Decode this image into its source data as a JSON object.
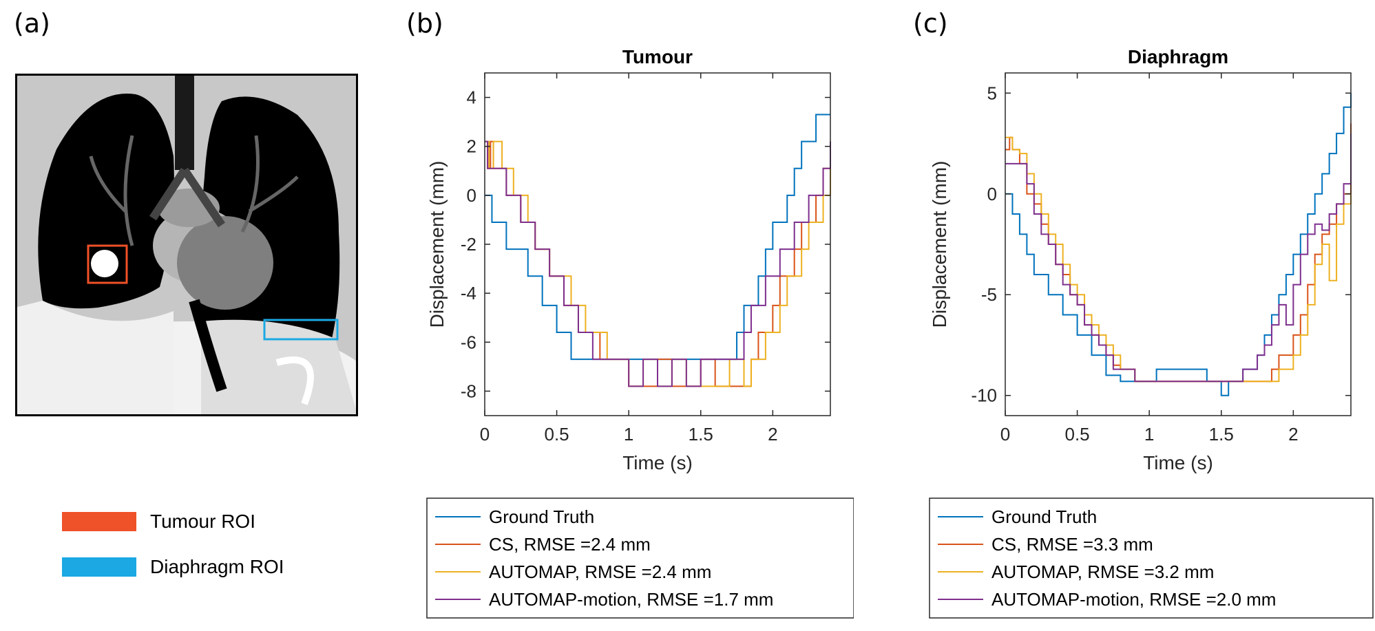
{
  "panels": {
    "a": {
      "letter": "(a)"
    },
    "b": {
      "letter": "(b)"
    },
    "c": {
      "letter": "(c)"
    }
  },
  "roi_legend": [
    {
      "label": "Tumour ROI",
      "color": "#EF5128"
    },
    {
      "label": "Diaphragm ROI",
      "color": "#1BA8E3"
    }
  ],
  "colors": {
    "ground_truth": "#0072BD",
    "cs": "#D95319",
    "automap": "#EDB120",
    "automap_motion": "#7E2F8E"
  },
  "chart_data": [
    {
      "type": "line",
      "title": "Tumour",
      "xlabel": "Time (s)",
      "ylabel": "Displacement (mm)",
      "xlim": [
        0,
        2.4
      ],
      "ylim": [
        -9,
        5
      ],
      "xticks": [
        0,
        0.5,
        1,
        1.5,
        2
      ],
      "xtick_labels": [
        "0",
        "0.5",
        "1",
        "1.5",
        "2"
      ],
      "yticks": [
        4,
        2,
        0,
        -2,
        -4,
        -6,
        -8
      ],
      "ytick_labels": [
        "4",
        "2",
        "0",
        "-2",
        "-4",
        "-6",
        "-8"
      ],
      "grid": false,
      "legend_position": "below",
      "series": [
        {
          "name": "Ground Truth",
          "color": "#0072BD",
          "x": [
            0,
            0.05,
            0.1,
            0.15,
            0.2,
            0.3,
            0.4,
            0.5,
            0.6,
            0.65,
            1.0,
            1.2,
            1.4,
            1.6,
            1.7,
            1.75,
            1.8,
            1.85,
            1.9,
            1.95,
            2.0,
            2.05,
            2.1,
            2.15,
            2.2,
            2.25,
            2.3,
            2.4
          ],
          "y": [
            0,
            -1.1,
            -1.1,
            -2.2,
            -2.2,
            -3.3,
            -4.5,
            -5.6,
            -6.7,
            -6.7,
            -6.7,
            -6.7,
            -6.7,
            -6.7,
            -6.7,
            -5.6,
            -4.5,
            -4.5,
            -3.3,
            -2.2,
            -1.1,
            -1.1,
            0,
            1.1,
            2.2,
            2.2,
            3.3,
            3.3
          ]
        },
        {
          "name": "CS, RMSE =2.4 mm",
          "color": "#D95319",
          "x": [
            0,
            0.02,
            0.04,
            0.06,
            0.1,
            0.15,
            0.2,
            0.25,
            0.3,
            0.35,
            0.4,
            0.45,
            0.5,
            0.55,
            0.6,
            0.65,
            0.7,
            0.75,
            0.8,
            0.85,
            0.9,
            1.0,
            1.1,
            1.2,
            1.3,
            1.4,
            1.5,
            1.6,
            1.7,
            1.8,
            1.85,
            1.9,
            1.95,
            2.0,
            2.05,
            2.1,
            2.15,
            2.2,
            2.25,
            2.3,
            2.35,
            2.4
          ],
          "y": [
            2.2,
            1.1,
            2.2,
            1.1,
            1.1,
            0,
            0,
            -1.1,
            -1.1,
            -2.2,
            -2.2,
            -3.3,
            -3.3,
            -4.5,
            -4.5,
            -5.6,
            -5.6,
            -5.6,
            -6.7,
            -6.7,
            -6.7,
            -7.8,
            -7.8,
            -6.7,
            -7.8,
            -7.8,
            -6.7,
            -7.8,
            -7.8,
            -7.8,
            -6.7,
            -5.6,
            -5.6,
            -4.5,
            -3.3,
            -3.3,
            -2.2,
            -1.1,
            -1.1,
            0,
            1.1,
            2.2
          ]
        },
        {
          "name": "AUTOMAP, RMSE =2.4 mm",
          "color": "#EDB120",
          "x": [
            0,
            0.03,
            0.06,
            0.1,
            0.12,
            0.15,
            0.2,
            0.25,
            0.3,
            0.35,
            0.4,
            0.45,
            0.5,
            0.55,
            0.6,
            0.65,
            0.7,
            0.75,
            0.8,
            0.85,
            0.9,
            1.0,
            1.1,
            1.2,
            1.3,
            1.4,
            1.5,
            1.6,
            1.7,
            1.8,
            1.85,
            1.9,
            1.95,
            2.0,
            2.05,
            2.1,
            2.15,
            2.2,
            2.25,
            2.3,
            2.35,
            2.4
          ],
          "y": [
            2.2,
            1.1,
            2.2,
            2.2,
            1.1,
            1.1,
            0,
            0,
            -1.1,
            -2.2,
            -2.2,
            -3.3,
            -3.3,
            -3.3,
            -4.5,
            -4.5,
            -5.6,
            -5.6,
            -5.6,
            -6.7,
            -6.7,
            -7.8,
            -6.7,
            -7.8,
            -6.7,
            -7.8,
            -7.8,
            -7.8,
            -6.7,
            -7.8,
            -6.7,
            -6.7,
            -5.6,
            -5.6,
            -4.5,
            -3.3,
            -3.3,
            -2.2,
            -1.1,
            -1.1,
            0,
            1.1
          ]
        },
        {
          "name": "AUTOMAP-motion, RMSE =1.7 mm",
          "color": "#7E2F8E",
          "x": [
            0,
            0.02,
            0.05,
            0.1,
            0.15,
            0.2,
            0.25,
            0.3,
            0.35,
            0.4,
            0.45,
            0.5,
            0.55,
            0.6,
            0.65,
            0.7,
            0.75,
            0.8,
            0.85,
            0.9,
            1.0,
            1.1,
            1.2,
            1.3,
            1.4,
            1.5,
            1.6,
            1.7,
            1.75,
            1.8,
            1.85,
            1.9,
            1.95,
            2.0,
            2.05,
            2.1,
            2.15,
            2.2,
            2.25,
            2.3,
            2.35,
            2.4
          ],
          "y": [
            2.2,
            1.1,
            1.1,
            1.1,
            0,
            0,
            -1.1,
            -1.1,
            -2.2,
            -2.2,
            -3.3,
            -3.3,
            -4.5,
            -4.5,
            -5.6,
            -5.6,
            -6.7,
            -6.7,
            -6.7,
            -6.7,
            -7.8,
            -6.7,
            -7.8,
            -6.7,
            -7.8,
            -6.7,
            -6.7,
            -6.7,
            -6.7,
            -5.6,
            -4.5,
            -4.5,
            -3.3,
            -3.3,
            -2.2,
            -2.2,
            -1.1,
            -1.1,
            0,
            0,
            1.1,
            2.2
          ]
        }
      ]
    },
    {
      "type": "line",
      "title": "Diaphragm",
      "xlabel": "Time (s)",
      "ylabel": "Displacement (mm)",
      "xlim": [
        0,
        2.4
      ],
      "ylim": [
        -11,
        6
      ],
      "xticks": [
        0,
        0.5,
        1,
        1.5,
        2
      ],
      "xtick_labels": [
        "0",
        "0.5",
        "1",
        "1.5",
        "2"
      ],
      "yticks": [
        5,
        0,
        -5,
        -10
      ],
      "ytick_labels": [
        "5",
        "0",
        "-5",
        "-10"
      ],
      "grid": false,
      "legend_position": "below",
      "series": [
        {
          "name": "Ground Truth",
          "color": "#0072BD",
          "x": [
            0,
            0.05,
            0.1,
            0.15,
            0.2,
            0.3,
            0.4,
            0.5,
            0.6,
            0.7,
            0.8,
            1.0,
            1.05,
            1.2,
            1.35,
            1.4,
            1.5,
            1.55,
            1.6,
            1.65,
            1.7,
            1.75,
            1.8,
            1.85,
            1.9,
            1.95,
            2.0,
            2.05,
            2.1,
            2.15,
            2.2,
            2.25,
            2.3,
            2.35,
            2.4
          ],
          "y": [
            0,
            -1,
            -2,
            -3,
            -4,
            -5,
            -6,
            -7,
            -8,
            -9,
            -9.3,
            -9.3,
            -8.7,
            -8.7,
            -8.7,
            -9.3,
            -10,
            -9.3,
            -9.3,
            -8.7,
            -8.7,
            -8,
            -7,
            -6,
            -5,
            -4,
            -3,
            -2,
            -1,
            0,
            1,
            2,
            3,
            4.3,
            5
          ]
        },
        {
          "name": "CS, RMSE =3.3 mm",
          "color": "#D95319",
          "x": [
            0,
            0.03,
            0.05,
            0.1,
            0.15,
            0.2,
            0.25,
            0.3,
            0.35,
            0.4,
            0.45,
            0.5,
            0.55,
            0.6,
            0.65,
            0.7,
            0.75,
            0.8,
            0.9,
            1.0,
            1.2,
            1.4,
            1.6,
            1.7,
            1.8,
            1.85,
            1.9,
            1.95,
            2.0,
            2.05,
            2.1,
            2.15,
            2.2,
            2.25,
            2.3,
            2.35,
            2.4
          ],
          "y": [
            2.2,
            2.8,
            2.2,
            1.5,
            0,
            -0.5,
            -1.5,
            -2.5,
            -3.5,
            -4,
            -5,
            -5.5,
            -6.5,
            -7,
            -7.5,
            -8,
            -8.5,
            -8.7,
            -9.3,
            -9.3,
            -9.3,
            -9.3,
            -9.3,
            -9.3,
            -9.3,
            -8.7,
            -8,
            -8,
            -7,
            -6,
            -4.5,
            -3,
            -2,
            -1.5,
            -0.5,
            0,
            3.5
          ]
        },
        {
          "name": "AUTOMAP, RMSE =3.2 mm",
          "color": "#EDB120",
          "x": [
            0,
            0.05,
            0.1,
            0.15,
            0.2,
            0.25,
            0.3,
            0.35,
            0.4,
            0.45,
            0.5,
            0.55,
            0.6,
            0.65,
            0.7,
            0.75,
            0.8,
            0.85,
            0.9,
            1.0,
            1.2,
            1.4,
            1.6,
            1.7,
            1.8,
            1.85,
            1.9,
            1.95,
            2.0,
            2.05,
            2.1,
            2.15,
            2.2,
            2.25,
            2.3,
            2.35,
            2.4
          ],
          "y": [
            2.8,
            2.2,
            2,
            1,
            0,
            -1,
            -2,
            -2.5,
            -3.5,
            -4.5,
            -5,
            -6,
            -6.5,
            -7,
            -7.5,
            -8,
            -8.7,
            -8.7,
            -9.3,
            -9.3,
            -9.3,
            -9.3,
            -9.3,
            -9.3,
            -9.3,
            -9.3,
            -8.7,
            -8.7,
            -8,
            -7,
            -5.5,
            -3.5,
            -2.5,
            -4.3,
            -1.5,
            -0.5,
            0
          ]
        },
        {
          "name": "AUTOMAP-motion, RMSE =2.0 mm",
          "color": "#7E2F8E",
          "x": [
            0,
            0.05,
            0.1,
            0.15,
            0.2,
            0.25,
            0.3,
            0.35,
            0.4,
            0.45,
            0.5,
            0.55,
            0.6,
            0.65,
            0.7,
            0.75,
            0.8,
            0.9,
            1.0,
            1.2,
            1.4,
            1.6,
            1.65,
            1.7,
            1.75,
            1.8,
            1.85,
            1.9,
            1.95,
            2.0,
            2.05,
            2.1,
            2.15,
            2.2,
            2.25,
            2.3,
            2.35,
            2.4
          ],
          "y": [
            1.5,
            1.5,
            1.5,
            0.5,
            -1,
            -2,
            -2.5,
            -3.5,
            -4.5,
            -5,
            -5.5,
            -6.5,
            -7,
            -7.5,
            -8,
            -8.7,
            -8.7,
            -9.3,
            -9.3,
            -9.3,
            -9.3,
            -9.3,
            -8.7,
            -8.7,
            -8,
            -7.5,
            -6.5,
            -5.5,
            -6.5,
            -4.5,
            -3,
            -2,
            -1.5,
            -1.8,
            -1,
            -0.5,
            0.5,
            3
          ]
        }
      ]
    }
  ]
}
